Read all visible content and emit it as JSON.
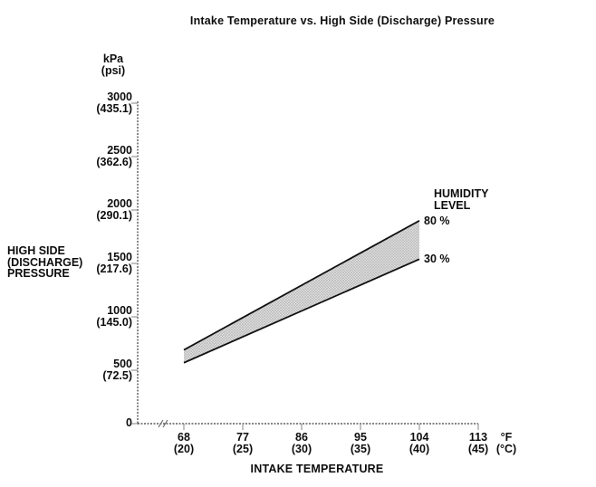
{
  "title": "Intake Temperature vs. High Side (Discharge) Pressure",
  "chart_data": {
    "type": "area",
    "title": "Intake Temperature vs. High Side (Discharge) Pressure",
    "xlabel": "INTAKE TEMPERATURE",
    "ylabel_multiline": "HIGH SIDE\n(DISCHARGE)\nPRESSURE",
    "y_unit_primary": "kPa",
    "y_unit_secondary": "(psi)",
    "x_unit_primary": "°F",
    "x_unit_secondary": "(°C)",
    "legend_title": "HUMIDITY\nLEVEL",
    "axis_break_on_x": true,
    "grid": false,
    "xlim_f": [
      68,
      113
    ],
    "ylim_kpa": [
      0,
      3000
    ],
    "x_ticks": [
      {
        "f": 68,
        "label_f": "68",
        "label_c": "(20)"
      },
      {
        "f": 77,
        "label_f": "77",
        "label_c": "(25)"
      },
      {
        "f": 86,
        "label_f": "86",
        "label_c": "(30)"
      },
      {
        "f": 95,
        "label_f": "95",
        "label_c": "(35)"
      },
      {
        "f": 104,
        "label_f": "104",
        "label_c": "(40)"
      },
      {
        "f": 113,
        "label_f": "113",
        "label_c": "(45)"
      }
    ],
    "y_ticks": [
      {
        "kpa": 0,
        "label_kpa": "0",
        "label_psi": ""
      },
      {
        "kpa": 500,
        "label_kpa": "500",
        "label_psi": "(72.5)"
      },
      {
        "kpa": 1000,
        "label_kpa": "1000",
        "label_psi": "(145.0)"
      },
      {
        "kpa": 1500,
        "label_kpa": "1500",
        "label_psi": "(217.6)"
      },
      {
        "kpa": 2000,
        "label_kpa": "2000",
        "label_psi": "(290.1)"
      },
      {
        "kpa": 2500,
        "label_kpa": "2500",
        "label_psi": "(362.6)"
      },
      {
        "kpa": 3000,
        "label_kpa": "3000",
        "label_psi": "(435.1)"
      }
    ],
    "series": [
      {
        "name": "80 %",
        "humidity_pct": 80,
        "points": [
          {
            "f": 68,
            "kpa": 690
          },
          {
            "f": 104,
            "kpa": 1900
          }
        ]
      },
      {
        "name": "30 %",
        "humidity_pct": 30,
        "points": [
          {
            "f": 68,
            "kpa": 570
          },
          {
            "f": 104,
            "kpa": 1540
          }
        ]
      }
    ],
    "band_between_series": true,
    "colors": {
      "band_fill_base": "#dcdcdc",
      "band_fill_dot": "#a5a5a5",
      "line": "#111111",
      "axis": "#3a3a3a",
      "tick": "#999999",
      "text": "#0d0d0d",
      "background": "#ffffff"
    }
  }
}
